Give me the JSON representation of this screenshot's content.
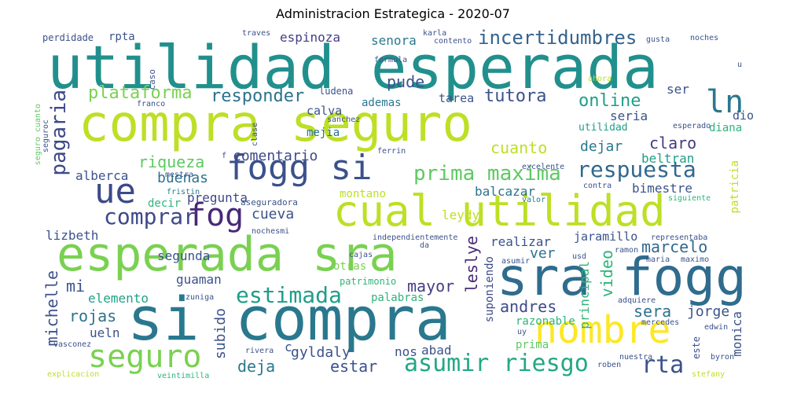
{
  "title": "Administracion Estrategica  - 2020-07",
  "words": [
    {
      "text": "utilidad esperada",
      "color": "#21908d"
    },
    {
      "text": "compra seguro",
      "color": "#bddf26"
    },
    {
      "text": "si compra",
      "color": "#2a788e"
    },
    {
      "text": "esperada sra",
      "color": "#7ad151"
    },
    {
      "text": "cual utilidad",
      "color": "#bddf26"
    },
    {
      "text": "sra fogg",
      "color": "#2f6c8e"
    },
    {
      "text": "fogg si",
      "color": "#3b518b"
    },
    {
      "text": "nombre",
      "color": "#fde725"
    },
    {
      "text": "seguro",
      "color": "#7ad151"
    },
    {
      "text": "ue",
      "color": "#3e4989"
    },
    {
      "text": "fog",
      "color": "#482878"
    },
    {
      "text": "ln",
      "color": "#2a788e"
    },
    {
      "text": "pagaria",
      "color": "#3e4989"
    },
    {
      "text": "prima maxima",
      "color": "#5ec962"
    },
    {
      "text": "respuesta",
      "color": "#31688e"
    },
    {
      "text": "asumir riesgo",
      "color": "#22a884"
    },
    {
      "text": "comprar",
      "color": "#3e4989"
    },
    {
      "text": "estimada",
      "color": "#1f9e89"
    },
    {
      "text": "rta",
      "color": "#3b528b"
    },
    {
      "text": "incertidumbres",
      "color": "#33638d"
    },
    {
      "text": "plataforma",
      "color": "#7ad151"
    },
    {
      "text": "responder",
      "color": "#2c728e"
    },
    {
      "text": "tutora",
      "color": "#3b528b"
    },
    {
      "text": "online",
      "color": "#1f9e89"
    },
    {
      "text": "pude",
      "color": "#3b528b"
    },
    {
      "text": "espinoza",
      "color": "#433e85"
    },
    {
      "text": "senora",
      "color": "#2a788e"
    },
    {
      "text": "utilidad",
      "color": "#1f9e89"
    },
    {
      "text": "riqueza",
      "color": "#5ec962"
    },
    {
      "text": "comentario",
      "color": "#3e4989"
    },
    {
      "text": "cuanto",
      "color": "#bddf26"
    },
    {
      "text": "claro",
      "color": "#443a83"
    },
    {
      "text": "dejar",
      "color": "#2a788e"
    },
    {
      "text": "buenas",
      "color": "#2c728e"
    },
    {
      "text": "alberca",
      "color": "#3b528b"
    },
    {
      "text": "cueva",
      "color": "#3b528b"
    },
    {
      "text": "marcelo",
      "color": "#31688e"
    },
    {
      "text": "video",
      "color": "#2fb47c"
    },
    {
      "text": "leslye",
      "color": "#482878"
    },
    {
      "text": "mayor",
      "color": "#433e85"
    },
    {
      "text": "andres",
      "color": "#3e4989"
    },
    {
      "text": "sera",
      "color": "#2c728e"
    },
    {
      "text": "jorge",
      "color": "#3b528b"
    },
    {
      "text": "rojas",
      "color": "#2c728e"
    },
    {
      "text": "michelle",
      "color": "#3b518b"
    },
    {
      "text": "mi",
      "color": "#3b528b"
    },
    {
      "text": "elemento",
      "color": "#20a386"
    },
    {
      "text": "guaman",
      "color": "#3b528b"
    },
    {
      "text": "subido",
      "color": "#3b528b"
    },
    {
      "text": "deja",
      "color": "#2a788e"
    },
    {
      "text": "estar",
      "color": "#3b528b"
    },
    {
      "text": "nos",
      "color": "#3b528b"
    },
    {
      "text": "abad",
      "color": "#3b528b"
    },
    {
      "text": "gyldaly",
      "color": "#3b528b"
    },
    {
      "text": "ueln",
      "color": "#3b528b"
    },
    {
      "text": "monica",
      "color": "#3b528b"
    },
    {
      "text": "bimestre",
      "color": "#3b528b"
    },
    {
      "text": "beltran",
      "color": "#1f9e89"
    },
    {
      "text": "ver",
      "color": "#2c728e"
    },
    {
      "text": "realizar",
      "color": "#3b528b"
    },
    {
      "text": "jaramillo",
      "color": "#3b528b"
    },
    {
      "text": "principal",
      "color": "#2fb47c"
    },
    {
      "text": "suponiendo",
      "color": "#3e4989"
    },
    {
      "text": "razonable",
      "color": "#2fb47c"
    },
    {
      "text": "prima",
      "color": "#5ec962"
    },
    {
      "text": "palabras",
      "color": "#2fb47c"
    },
    {
      "text": "otras",
      "color": "#7ad151"
    },
    {
      "text": "patrimonio",
      "color": "#2fb47c"
    },
    {
      "text": "balcazar",
      "color": "#2c728e"
    },
    {
      "text": "pregunta",
      "color": "#3e4989"
    },
    {
      "text": "segunda",
      "color": "#3b528b"
    },
    {
      "text": "decir",
      "color": "#2fb47c"
    },
    {
      "text": "lizbeth",
      "color": "#3b528b"
    },
    {
      "text": "montano",
      "color": "#bddf26"
    },
    {
      "text": "leydy",
      "color": "#bddf26"
    },
    {
      "text": "ademas",
      "color": "#2a788e"
    },
    {
      "text": "tarea",
      "color": "#3b528b"
    },
    {
      "text": "ludena",
      "color": "#3b528b"
    },
    {
      "text": "calva",
      "color": "#3b528b"
    },
    {
      "text": "mejia",
      "color": "#2c728e"
    },
    {
      "text": "seria",
      "color": "#3b528b"
    },
    {
      "text": "ser",
      "color": "#3b528b"
    },
    {
      "text": "dio",
      "color": "#3b528b"
    },
    {
      "text": "perdidade",
      "color": "#3b528b"
    },
    {
      "text": "rpta",
      "color": "#3b528b"
    },
    {
      "text": "patricia",
      "color": "#bddf26"
    },
    {
      "text": "caso",
      "color": "#3b528b"
    },
    {
      "text": "franco",
      "color": "#3b528b"
    },
    {
      "text": "aseguradora",
      "color": "#3b528b"
    },
    {
      "text": "mestra",
      "color": "#3b528b"
    },
    {
      "text": "fristin",
      "color": "#2a788e"
    },
    {
      "text": "nochesmi",
      "color": "#3b528b"
    },
    {
      "text": "zuniga",
      "color": "#3b528b"
    },
    {
      "text": "cajas",
      "color": "#3b528b"
    },
    {
      "text": "usd",
      "color": "#3b528b"
    },
    {
      "text": "asumir",
      "color": "#3b528b"
    },
    {
      "text": "maria",
      "color": "#3b528b"
    },
    {
      "text": "maximo",
      "color": "#3b528b"
    },
    {
      "text": "ramon",
      "color": "#3b528b"
    },
    {
      "text": "representaba",
      "color": "#3b528b"
    },
    {
      "text": "adquiere",
      "color": "#3b528b"
    },
    {
      "text": "mercedes",
      "color": "#3b528b"
    },
    {
      "text": "edwin",
      "color": "#3b528b"
    },
    {
      "text": "este",
      "color": "#3b528b"
    },
    {
      "text": "byron",
      "color": "#3b528b"
    },
    {
      "text": "stefany",
      "color": "#bddf26"
    },
    {
      "text": "nuestra",
      "color": "#3b528b"
    },
    {
      "text": "roben",
      "color": "#3b528b"
    },
    {
      "text": "uy",
      "color": "#3b528b"
    },
    {
      "text": "rivera",
      "color": "#3b528b"
    },
    {
      "text": "vasconez",
      "color": "#3b528b"
    },
    {
      "text": "explicacion",
      "color": "#bddf26"
    },
    {
      "text": "veintimilla",
      "color": "#2fb47c"
    },
    {
      "text": "independientemente",
      "color": "#3b528b"
    },
    {
      "text": "da",
      "color": "#3b528b"
    },
    {
      "text": "excelente",
      "color": "#3b528b"
    },
    {
      "text": "valor",
      "color": "#2a788e"
    },
    {
      "text": "contra",
      "color": "#3b528b"
    },
    {
      "text": "siguiente",
      "color": "#2fb47c"
    },
    {
      "text": "diana",
      "color": "#2fb47c"
    },
    {
      "text": "esperado",
      "color": "#3b528b"
    },
    {
      "text": "ferrin",
      "color": "#3b528b"
    },
    {
      "text": "sanchez",
      "color": "#3b528b"
    },
    {
      "text": "clase",
      "color": "#3b528b"
    },
    {
      "text": "seguroc",
      "color": "#3b528b"
    },
    {
      "text": "karla",
      "color": "#3b528b"
    },
    {
      "text": "contento",
      "color": "#3b528b"
    },
    {
      "text": "formula",
      "color": "#3b528b"
    },
    {
      "text": "gusta",
      "color": "#3b528b"
    },
    {
      "text": "noches",
      "color": "#3b528b"
    },
    {
      "text": "ahora",
      "color": "#bddf26"
    },
    {
      "text": "traves",
      "color": "#3b528b"
    },
    {
      "text": "u",
      "color": "#3b528b"
    },
    {
      "text": "f",
      "color": "#3b528b"
    },
    {
      "text": "c",
      "color": "#3b528b"
    },
    {
      "text": "seguro cuanto",
      "color": "#5ec962"
    }
  ]
}
